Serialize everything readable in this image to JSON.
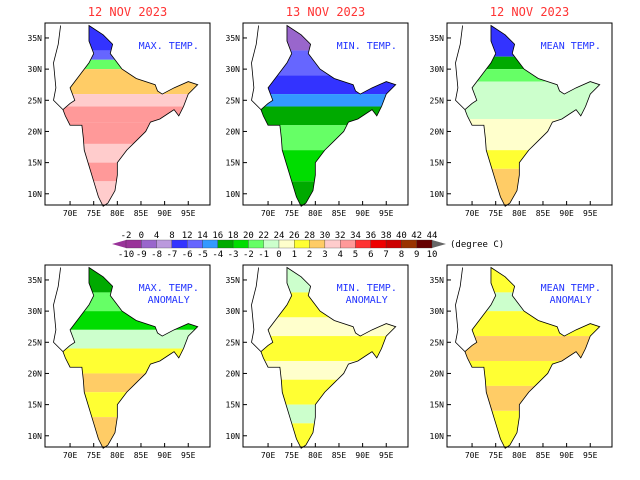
{
  "panels": [
    {
      "date": "12 NOV 2023",
      "label": [
        "MAX. TEMP."
      ],
      "bands": [
        [
          37,
          "#3333ff"
        ],
        [
          33,
          "#6666ff"
        ],
        [
          31.5,
          "#66ff66"
        ],
        [
          30,
          "#ffcc66"
        ],
        [
          26,
          "#ffcccc"
        ],
        [
          24,
          "#ff9999"
        ],
        [
          21.5,
          "#ff9999"
        ],
        [
          18,
          "#ffcccc"
        ],
        [
          15,
          "#ff9999"
        ],
        [
          12,
          "#ffcccc"
        ]
      ]
    },
    {
      "date": "13 NOV 2023",
      "label": [
        "MIN. TEMP."
      ],
      "bands": [
        [
          37,
          "#9966cc"
        ],
        [
          33,
          "#6666ff"
        ],
        [
          29,
          "#3333ff"
        ],
        [
          26,
          "#3399ff"
        ],
        [
          24,
          "#00aa00"
        ],
        [
          21,
          "#66ff66"
        ],
        [
          17,
          "#00dd00"
        ],
        [
          12,
          "#00aa00"
        ]
      ]
    },
    {
      "date": "12 NOV 2023",
      "label": [
        "MEAN TEMP."
      ],
      "bands": [
        [
          37,
          "#3333ff"
        ],
        [
          32,
          "#00aa00"
        ],
        [
          30,
          "#66ff66"
        ],
        [
          28,
          "#ccffcc"
        ],
        [
          22,
          "#ffffcc"
        ],
        [
          17,
          "#ffff33"
        ],
        [
          14,
          "#ffcc66"
        ]
      ]
    },
    {
      "date": "",
      "label": [
        "MAX. TEMP.",
        "ANOMALY"
      ],
      "bands": [
        [
          37,
          "#00aa00"
        ],
        [
          33,
          "#66ff66"
        ],
        [
          30,
          "#00dd00"
        ],
        [
          27,
          "#ccffcc"
        ],
        [
          24,
          "#ffff33"
        ],
        [
          20,
          "#ffcc66"
        ],
        [
          17,
          "#ffff33"
        ],
        [
          13,
          "#ffcc66"
        ]
      ]
    },
    {
      "date": "",
      "label": [
        "MIN. TEMP.",
        "ANOMALY"
      ],
      "bands": [
        [
          37,
          "#ccffcc"
        ],
        [
          33,
          "#ffff33"
        ],
        [
          29,
          "#ffffcc"
        ],
        [
          26,
          "#ffff33"
        ],
        [
          22,
          "#ffffcc"
        ],
        [
          19,
          "#ffff33"
        ],
        [
          15,
          "#ccffcc"
        ],
        [
          12,
          "#ffff33"
        ]
      ]
    },
    {
      "date": "",
      "label": [
        "MEAN TEMP.",
        "ANOMALY"
      ],
      "bands": [
        [
          37,
          "#ffff33"
        ],
        [
          33,
          "#ccffcc"
        ],
        [
          30,
          "#ffff33"
        ],
        [
          26,
          "#ffcc66"
        ],
        [
          22,
          "#ffff33"
        ],
        [
          18,
          "#ffcc66"
        ],
        [
          14,
          "#ffff33"
        ]
      ]
    }
  ],
  "axes": {
    "lat_ticks": [
      "10N",
      "15N",
      "20N",
      "25N",
      "30N",
      "35N"
    ],
    "lon_ticks": [
      "70E",
      "75E",
      "80E",
      "85E",
      "90E",
      "95E"
    ]
  },
  "colorbar": {
    "top_labels": [
      "-2",
      "0",
      "4",
      "8",
      "12",
      "14",
      "16",
      "18",
      "20",
      "22",
      "24",
      "26",
      "28",
      "30",
      "32",
      "34",
      "36",
      "38",
      "40",
      "42",
      "44"
    ],
    "bottom_labels": [
      "-10",
      "-9",
      "-8",
      "-7",
      "-6",
      "-5",
      "-4",
      "-3",
      "-2",
      "-1",
      "0",
      "1",
      "2",
      "3",
      "4",
      "5",
      "6",
      "7",
      "8",
      "9",
      "10"
    ],
    "colors": [
      "#993399",
      "#9966cc",
      "#bb99dd",
      "#3333ff",
      "#6666ff",
      "#3399ff",
      "#00aa00",
      "#00dd00",
      "#66ff66",
      "#ccffcc",
      "#ffffcc",
      "#ffff33",
      "#ffcc66",
      "#ffcccc",
      "#ff9999",
      "#ff3333",
      "#ee0000",
      "#cc0000",
      "#993300",
      "#660000"
    ],
    "unit": "(degree C)"
  }
}
